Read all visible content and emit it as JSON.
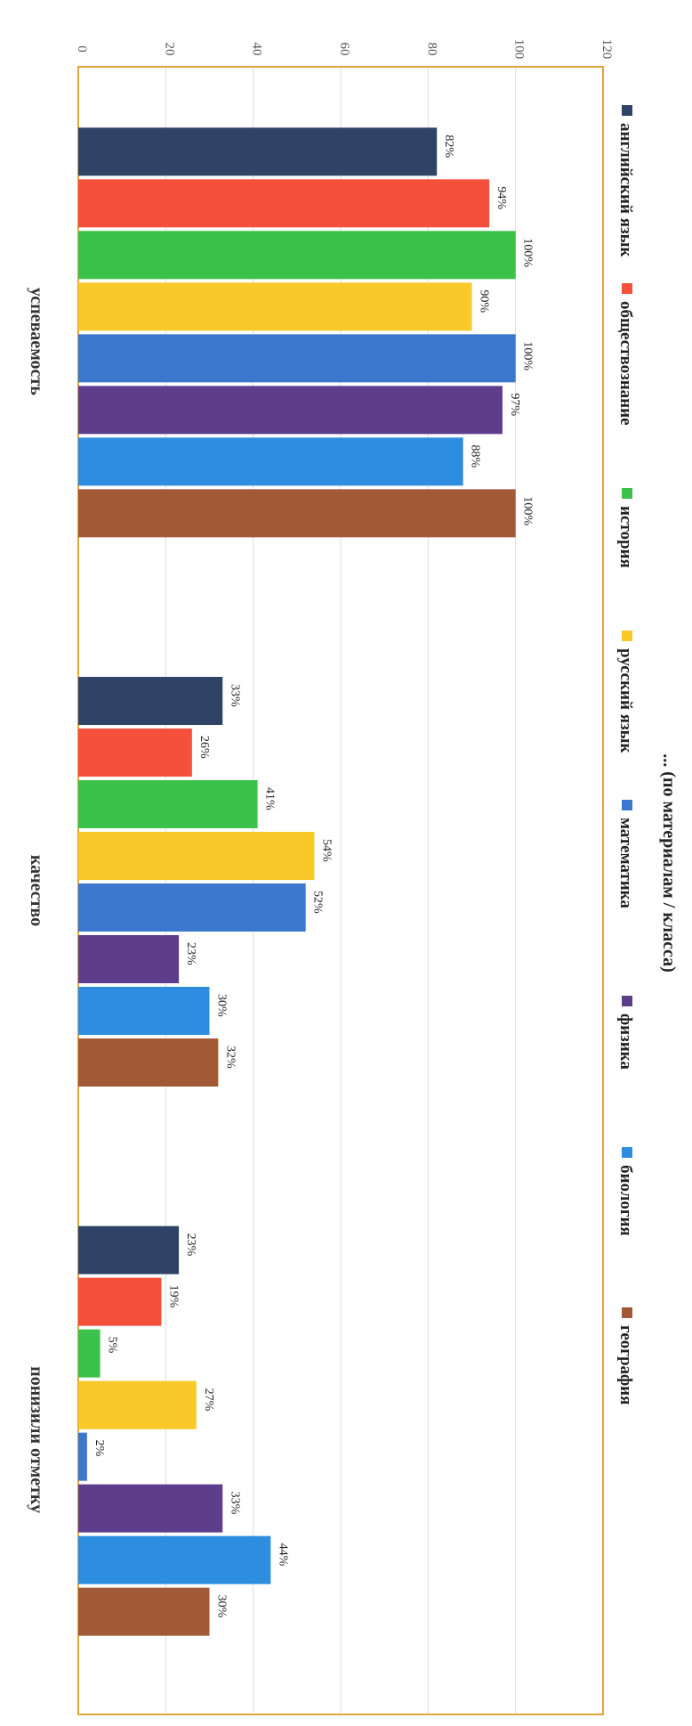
{
  "chart_data": {
    "type": "bar",
    "title": "... (по материалам / класса)",
    "categories": [
      "успеваемость",
      "качество",
      "понизили отметку"
    ],
    "series": [
      {
        "name": "английский язык",
        "color": "#2e4366",
        "values": [
          82,
          33,
          23
        ],
        "labels": [
          "82%",
          "33%",
          "23%"
        ]
      },
      {
        "name": "обществознание",
        "color": "#f4503b",
        "values": [
          94,
          26,
          19
        ],
        "labels": [
          "94%",
          "26%",
          "19%"
        ]
      },
      {
        "name": "история",
        "color": "#3cc24a",
        "values": [
          100,
          41,
          5
        ],
        "labels": [
          "100%",
          "41%",
          "5%"
        ]
      },
      {
        "name": "русский язык",
        "color": "#f9c829",
        "values": [
          90,
          54,
          27
        ],
        "labels": [
          "90%",
          "54%",
          "27%"
        ]
      },
      {
        "name": "математика",
        "color": "#3b77cc",
        "values": [
          100,
          52,
          2
        ],
        "labels": [
          "100%",
          "52%",
          "2%"
        ]
      },
      {
        "name": "физика",
        "color": "#5e3e8c",
        "values": [
          97,
          23,
          33
        ],
        "labels": [
          "97%",
          "23%",
          "33%"
        ]
      },
      {
        "name": "биология",
        "color": "#2d8ee0",
        "values": [
          88,
          30,
          44
        ],
        "labels": [
          "88%",
          "30%",
          "44%"
        ]
      },
      {
        "name": "география",
        "color": "#a25a36",
        "values": [
          100,
          32,
          30
        ],
        "labels": [
          "100%",
          "32%",
          "30%"
        ]
      }
    ],
    "yticks": [
      "0",
      "20",
      "40",
      "60",
      "80",
      "100",
      "120"
    ],
    "ylim": [
      0,
      120
    ],
    "grid": true,
    "legend": "top",
    "orientation": "rotated 90° clockwise (page viewed sideways)"
  }
}
